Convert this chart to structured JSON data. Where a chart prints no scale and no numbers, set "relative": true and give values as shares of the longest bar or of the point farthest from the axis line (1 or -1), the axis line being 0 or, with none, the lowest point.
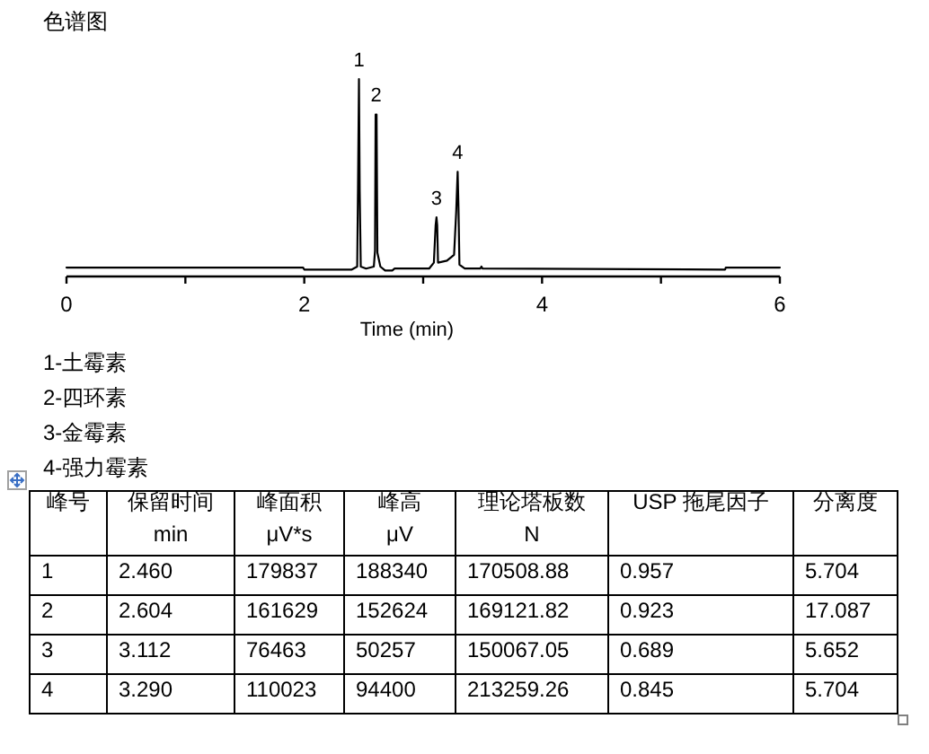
{
  "chart_data": [
    {
      "type": "line",
      "title": "色谱图",
      "xlabel": "Time (min)",
      "relative": true,
      "xlim": [
        0,
        6
      ],
      "xticks": [
        0,
        {
          "value": 1,
          "label": null
        },
        2,
        {
          "value": 3,
          "label": null
        },
        4,
        {
          "value": 5,
          "label": null
        },
        6
      ],
      "x": [
        0,
        1.99,
        2.0,
        2.4,
        2.445,
        2.452,
        2.46,
        2.466,
        2.475,
        2.52,
        2.585,
        2.595,
        2.6,
        2.608,
        2.615,
        2.64,
        2.68,
        2.74,
        2.76,
        3.05,
        3.09,
        3.105,
        3.112,
        3.118,
        3.125,
        3.2,
        3.26,
        3.278,
        3.29,
        3.297,
        3.305,
        3.35,
        3.48,
        3.49,
        3.5,
        5.54,
        5.545,
        6
      ],
      "series": [
        {
          "color": "#000000",
          "values": [
            0.045,
            0.045,
            0.035,
            0.035,
            0.05,
            0.45,
            1,
            0.44,
            0.05,
            0.04,
            0.05,
            0.13,
            0.82,
            0.82,
            0.12,
            0.05,
            0.03,
            0.03,
            0.04,
            0.04,
            0.07,
            0.26,
            0.3,
            0.26,
            0.07,
            0.08,
            0.11,
            0.33,
            0.53,
            0.35,
            0.06,
            0.04,
            0.04,
            0.05,
            0.04,
            0.035,
            0.045,
            0.045
          ]
        }
      ],
      "annotations": [
        {
          "text": "1",
          "x": 2.46,
          "y": 1
        },
        {
          "text": "2",
          "x": 2.604,
          "y": 0.82
        },
        {
          "text": "3",
          "x": 3.112,
          "y": 0.3
        },
        {
          "text": "4",
          "x": 3.29,
          "y": 0.53
        },
        "1-土霉素",
        "2-四环素",
        "3-金霉素",
        "4-强力霉素"
      ]
    },
    {
      "type": "heatmap",
      "ylabel": "峰号",
      "categories": [
        "保留时间\nmin",
        "峰面积\nμV*s",
        "峰高\nμV",
        "理论塔板数\nN",
        "USP 拖尾因子",
        "分离度"
      ],
      "y_categories": [
        "1",
        "2",
        "3",
        "4"
      ],
      "cells": [
        [
          2.46,
          179837,
          188340,
          170508.88,
          0.957,
          5.704
        ],
        [
          2.604,
          161629,
          152624,
          169121.82,
          0.923,
          17.087
        ],
        [
          3.112,
          76463,
          50257,
          150067.05,
          0.689,
          5.652
        ],
        [
          3.29,
          110023,
          94400,
          213259.26,
          0.845,
          5.704
        ]
      ],
      "cell_labels": [
        [
          "2.460",
          "179837",
          "188340",
          "170508.88",
          "0.957",
          "5.704"
        ],
        [
          "2.604",
          "161629",
          "152624",
          "169121.82",
          "0.923",
          "17.087"
        ],
        [
          "3.112",
          "76463",
          "50257",
          "150067.05",
          "0.689",
          "5.652"
        ],
        [
          "3.290",
          "110023",
          "94400",
          "213259.26",
          "0.845",
          "5.704"
        ]
      ]
    }
  ]
}
